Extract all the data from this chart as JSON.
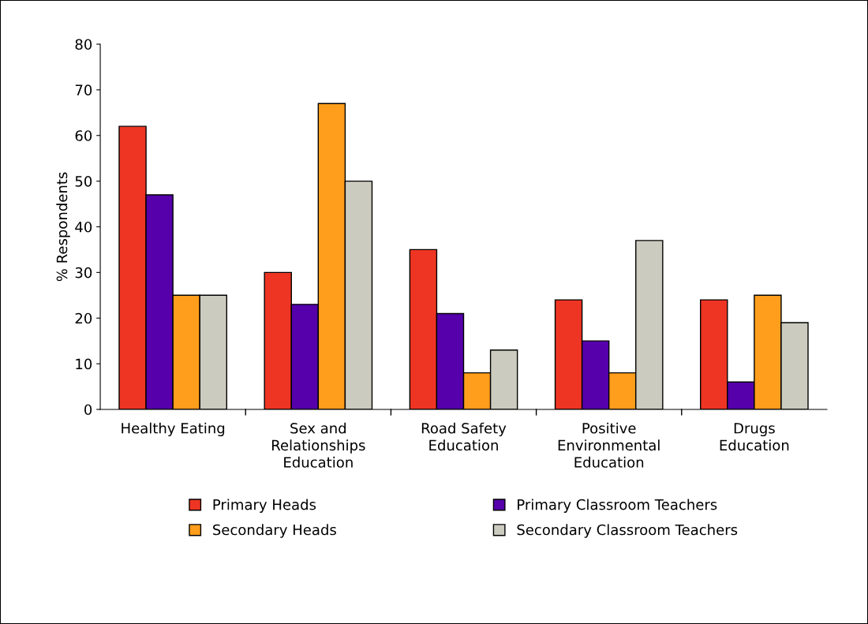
{
  "chart_data": {
    "type": "bar",
    "ylabel": "% Respondents",
    "categories": [
      "Healthy Eating",
      "Sex and Relationships Education",
      "Road Safety Education",
      "Positive Environmental Education",
      "Drugs Education"
    ],
    "series": [
      {
        "name": "Primary Heads",
        "color": "#ee3524",
        "values": [
          62,
          30,
          35,
          24,
          24
        ]
      },
      {
        "name": "Primary Classroom Teachers",
        "color": "#5500aa",
        "values": [
          47,
          23,
          21,
          15,
          6
        ]
      },
      {
        "name": "Secondary Heads",
        "color": "#ff9d1c",
        "values": [
          25,
          67,
          8,
          8,
          25
        ]
      },
      {
        "name": "Secondary Classroom Teachers",
        "color": "#cccbbf",
        "values": [
          25,
          50,
          13,
          37,
          19
        ]
      }
    ],
    "ylim": [
      0,
      80
    ],
    "yticks": [
      0,
      10,
      20,
      30,
      40,
      50,
      60,
      70,
      80
    ],
    "grid": false,
    "legend": "bottom"
  }
}
